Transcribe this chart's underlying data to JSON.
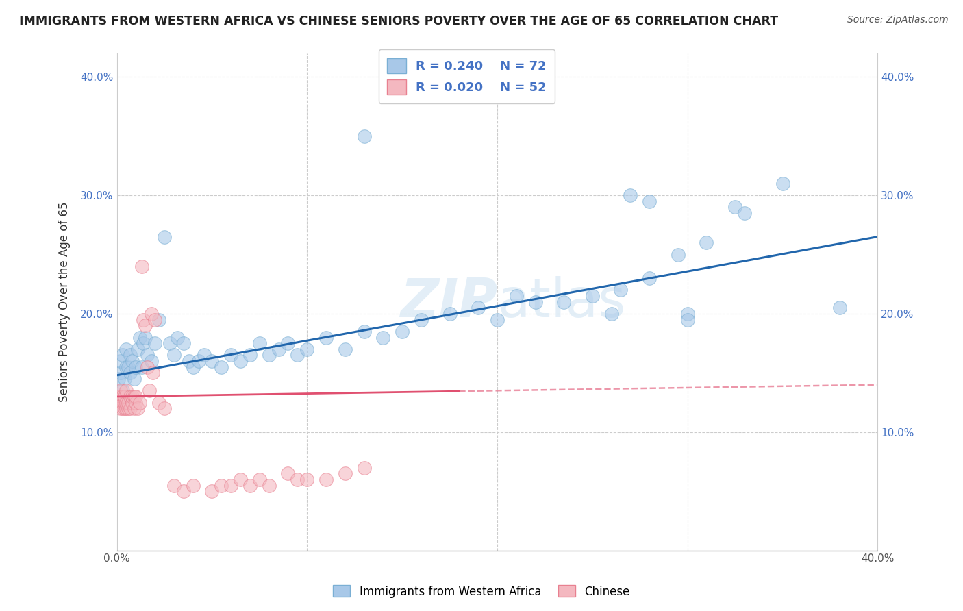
{
  "title": "IMMIGRANTS FROM WESTERN AFRICA VS CHINESE SENIORS POVERTY OVER THE AGE OF 65 CORRELATION CHART",
  "source": "Source: ZipAtlas.com",
  "ylabel": "Seniors Poverty Over the Age of 65",
  "xlim": [
    0.0,
    0.4
  ],
  "ylim": [
    0.0,
    0.42
  ],
  "legend_labels": [
    "Immigrants from Western Africa",
    "Chinese"
  ],
  "R_blue": 0.24,
  "N_blue": 72,
  "R_pink": 0.02,
  "N_pink": 52,
  "blue_color": "#a8c8e8",
  "blue_edge_color": "#7aafd4",
  "pink_color": "#f4b8c0",
  "pink_edge_color": "#e88090",
  "blue_line_color": "#2166ac",
  "pink_line_color": "#e05070",
  "watermark_color": "#c8dff0",
  "background_color": "#ffffff",
  "grid_color": "#cccccc",
  "blue_scatter_x": [
    0.001,
    0.002,
    0.002,
    0.003,
    0.003,
    0.004,
    0.004,
    0.005,
    0.005,
    0.006,
    0.006,
    0.007,
    0.007,
    0.008,
    0.009,
    0.01,
    0.011,
    0.012,
    0.013,
    0.014,
    0.015,
    0.016,
    0.018,
    0.02,
    0.022,
    0.025,
    0.028,
    0.03,
    0.032,
    0.035,
    0.038,
    0.04,
    0.043,
    0.046,
    0.05,
    0.055,
    0.06,
    0.065,
    0.07,
    0.075,
    0.08,
    0.085,
    0.09,
    0.095,
    0.1,
    0.11,
    0.12,
    0.13,
    0.14,
    0.15,
    0.16,
    0.175,
    0.19,
    0.2,
    0.21,
    0.22,
    0.235,
    0.25,
    0.265,
    0.28,
    0.295,
    0.31,
    0.325,
    0.26,
    0.28,
    0.35,
    0.3,
    0.38,
    0.3,
    0.33,
    0.27,
    0.13
  ],
  "blue_scatter_y": [
    0.145,
    0.15,
    0.16,
    0.135,
    0.165,
    0.13,
    0.145,
    0.155,
    0.17,
    0.13,
    0.155,
    0.15,
    0.165,
    0.16,
    0.145,
    0.155,
    0.17,
    0.18,
    0.155,
    0.175,
    0.18,
    0.165,
    0.16,
    0.175,
    0.195,
    0.265,
    0.175,
    0.165,
    0.18,
    0.175,
    0.16,
    0.155,
    0.16,
    0.165,
    0.16,
    0.155,
    0.165,
    0.16,
    0.165,
    0.175,
    0.165,
    0.17,
    0.175,
    0.165,
    0.17,
    0.18,
    0.17,
    0.185,
    0.18,
    0.185,
    0.195,
    0.2,
    0.205,
    0.195,
    0.215,
    0.21,
    0.21,
    0.215,
    0.22,
    0.23,
    0.25,
    0.26,
    0.29,
    0.2,
    0.295,
    0.31,
    0.2,
    0.205,
    0.195,
    0.285,
    0.3,
    0.35
  ],
  "pink_scatter_x": [
    0.001,
    0.001,
    0.002,
    0.002,
    0.002,
    0.003,
    0.003,
    0.003,
    0.004,
    0.004,
    0.004,
    0.005,
    0.005,
    0.005,
    0.006,
    0.006,
    0.007,
    0.007,
    0.008,
    0.008,
    0.009,
    0.009,
    0.01,
    0.01,
    0.011,
    0.012,
    0.013,
    0.014,
    0.015,
    0.016,
    0.017,
    0.018,
    0.019,
    0.02,
    0.022,
    0.025,
    0.03,
    0.035,
    0.04,
    0.05,
    0.055,
    0.06,
    0.065,
    0.07,
    0.075,
    0.08,
    0.09,
    0.095,
    0.1,
    0.11,
    0.12,
    0.13
  ],
  "pink_scatter_y": [
    0.125,
    0.13,
    0.12,
    0.13,
    0.135,
    0.12,
    0.125,
    0.13,
    0.12,
    0.125,
    0.13,
    0.12,
    0.125,
    0.135,
    0.12,
    0.125,
    0.12,
    0.13,
    0.125,
    0.13,
    0.12,
    0.13,
    0.125,
    0.13,
    0.12,
    0.125,
    0.24,
    0.195,
    0.19,
    0.155,
    0.135,
    0.2,
    0.15,
    0.195,
    0.125,
    0.12,
    0.055,
    0.05,
    0.055,
    0.05,
    0.055,
    0.055,
    0.06,
    0.055,
    0.06,
    0.055,
    0.065,
    0.06,
    0.06,
    0.06,
    0.065,
    0.07
  ]
}
